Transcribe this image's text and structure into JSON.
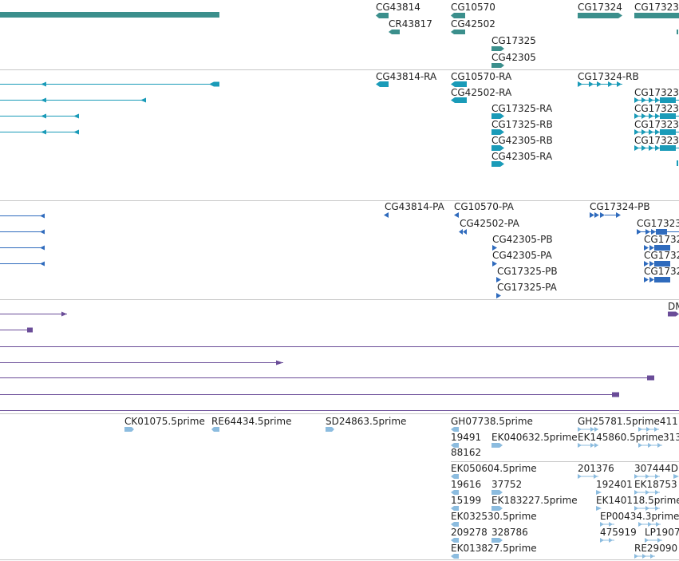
{
  "colors": {
    "gene": "#3b8f8c",
    "mrna": "#1a9bb8",
    "cds": "#2f6bbd",
    "ncrna": "#6a4c98",
    "est": "#8cbcdf",
    "divider": "#c8c8c8"
  },
  "tracks": {
    "genes": {
      "labels": [
        "CG43814",
        "CR43817",
        "CG10570",
        "CG42502",
        "CG17325",
        "CG42305",
        "CG17324",
        "CG17323"
      ]
    },
    "transcripts": {
      "labels": [
        "CG43814-RA",
        "CG10570-RA",
        "CG17324-RB",
        "CG42502-RA",
        "CG17323",
        "CG17325-RA",
        "CG17323",
        "CG17325-RB",
        "CG17323",
        "CG42305-RB",
        "CG17323",
        "CG42305-RA"
      ]
    },
    "proteins": {
      "labels": [
        "CG43814-PA",
        "CG10570-PA",
        "CG17324-PB",
        "CG42502-PA",
        "CG17323",
        "CG42305-PB",
        "CG1732",
        "CG42305-PA",
        "CG1732",
        "CG17325-PB",
        "CG1732",
        "CG17325-PA"
      ]
    },
    "ncrna": {
      "labels": [
        "DM"
      ]
    },
    "est": {
      "labels": [
        "CK01075.5prime",
        "RE64434.5prime",
        "SD24863.5prime",
        "GH07738.5prime",
        "GH25781.5prime411",
        "19491",
        "EK040632.5prime",
        "EK145860.5prime",
        "313",
        "88162",
        "EK050604.5prime",
        "201376",
        "307444D",
        "19616",
        "37752",
        "192401",
        "EK18753",
        "15199",
        "EK183227.5prime",
        "EK140118.5prime",
        "EK032530.5prime",
        "EP00434.3prime",
        "209278",
        "328786",
        "475919",
        "LP1907",
        "EK013827.5prime",
        "RE29090"
      ]
    }
  }
}
